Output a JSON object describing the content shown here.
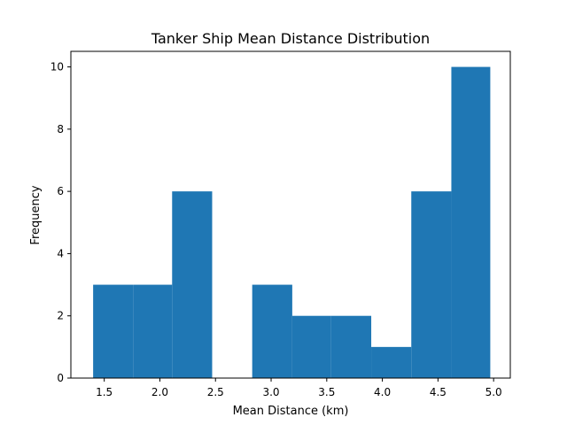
{
  "chart_data": {
    "type": "bar",
    "title": "Tanker Ship Mean Distance Distribution",
    "xlabel": "Mean Distance (km)",
    "ylabel": "Frequency",
    "xlim": [
      1.2,
      5.15
    ],
    "ylim": [
      0,
      10.5
    ],
    "xticks": [
      1.5,
      2.0,
      2.5,
      3.0,
      3.5,
      4.0,
      4.5,
      5.0
    ],
    "xtick_labels": [
      "1.5",
      "2.0",
      "2.5",
      "3.0",
      "3.5",
      "4.0",
      "4.5",
      "5.0"
    ],
    "yticks": [
      0,
      2,
      4,
      6,
      8,
      10
    ],
    "ytick_labels": [
      "0",
      "2",
      "4",
      "6",
      "8",
      "10"
    ],
    "bin_edges": [
      1.4,
      1.76,
      2.11,
      2.47,
      2.83,
      3.19,
      3.54,
      3.9,
      4.26,
      4.62,
      4.97
    ],
    "values": [
      3,
      3,
      6,
      0,
      3,
      2,
      2,
      1,
      6,
      10
    ],
    "bar_color": "#1f77b4",
    "grid": false,
    "legend": false
  }
}
